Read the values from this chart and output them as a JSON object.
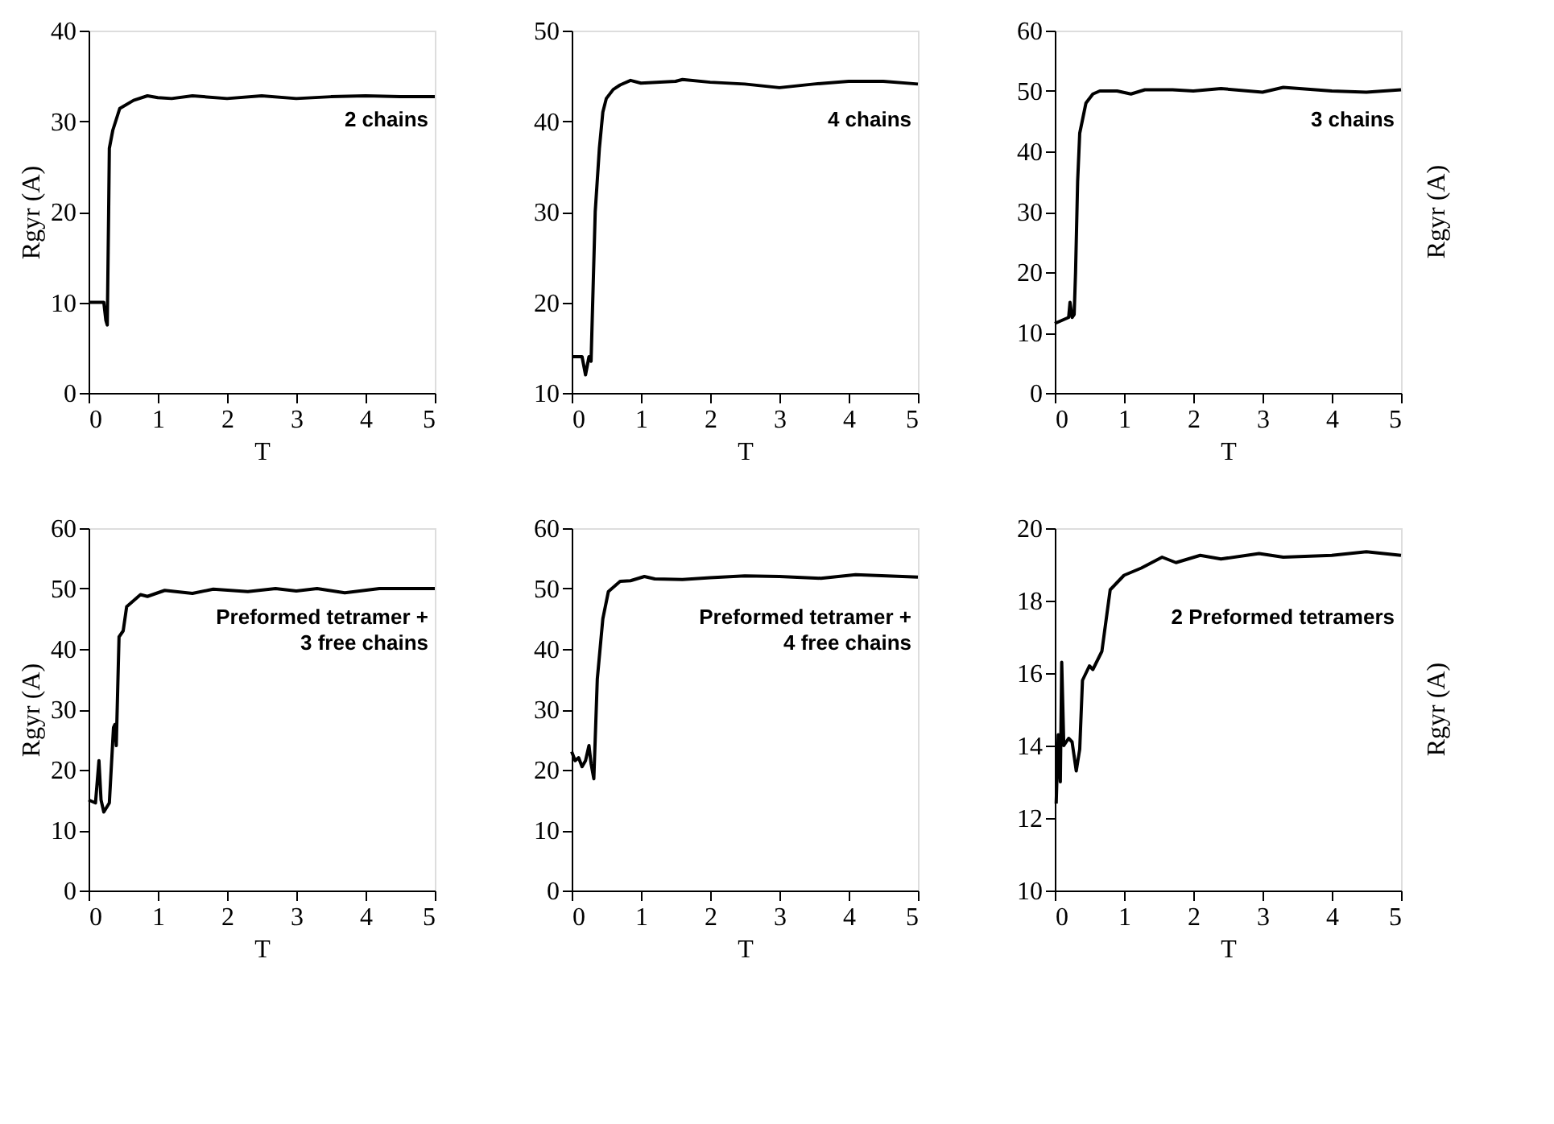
{
  "chart_data": [
    {
      "type": "line",
      "xlabel": "T",
      "ylabel": "Rgyr (A)",
      "annotations": [
        "2 chains"
      ],
      "xlim": [
        0,
        5
      ],
      "ylim": [
        0,
        40
      ],
      "xticks": [
        0,
        1,
        2,
        3,
        4,
        5
      ],
      "yticks": [
        0,
        10,
        20,
        30,
        40
      ],
      "grid": false,
      "marker": "none",
      "series": [
        {
          "color": "#000000",
          "x": [
            0,
            0.15,
            0.22,
            0.25,
            0.27,
            0.29,
            0.3,
            0.35,
            0.45,
            0.65,
            0.85,
            1,
            1.2,
            1.5,
            2,
            2.5,
            3,
            3.5,
            4,
            4.5,
            5
          ],
          "values": [
            10,
            10,
            10,
            8,
            7.5,
            20,
            27,
            29,
            31.4,
            32.3,
            32.8,
            32.6,
            32.5,
            32.8,
            32.5,
            32.8,
            32.5,
            32.7,
            32.8,
            32.7,
            32.7
          ]
        }
      ]
    },
    {
      "type": "line",
      "xlabel": "T",
      "annotations": [
        "4 chains"
      ],
      "xlim": [
        0,
        5
      ],
      "ylim": [
        10,
        50
      ],
      "xticks": [
        0,
        1,
        2,
        3,
        4,
        5
      ],
      "yticks": [
        10,
        20,
        30,
        40,
        50
      ],
      "grid": false,
      "marker": "none",
      "series": [
        {
          "color": "#000000",
          "x": [
            0,
            0.15,
            0.2,
            0.25,
            0.28,
            0.34,
            0.4,
            0.45,
            0.5,
            0.6,
            0.7,
            0.85,
            1,
            1.5,
            1.6,
            2,
            2.5,
            3,
            3.5,
            4,
            4.5,
            5
          ],
          "values": [
            14,
            14,
            12,
            14,
            13.5,
            30,
            37,
            41,
            42.5,
            43.5,
            44,
            44.5,
            44.2,
            44.4,
            44.6,
            44.3,
            44.1,
            43.7,
            44.1,
            44.4,
            44.4,
            44.1
          ]
        }
      ]
    },
    {
      "type": "line",
      "xlabel": "T",
      "ylabel": "Rgyr (A)",
      "annotations": [
        "3 chains"
      ],
      "xlim": [
        0,
        5
      ],
      "ylim": [
        0,
        60
      ],
      "xticks": [
        0,
        1,
        2,
        3,
        4,
        5
      ],
      "yticks": [
        0,
        10,
        20,
        30,
        40,
        50,
        60
      ],
      "grid": false,
      "marker": "none",
      "series": [
        {
          "color": "#000000",
          "x": [
            0,
            0.1,
            0.2,
            0.22,
            0.25,
            0.28,
            0.3,
            0.33,
            0.36,
            0.45,
            0.55,
            0.65,
            0.9,
            1.1,
            1.3,
            1.7,
            2,
            2.4,
            3,
            3.3,
            4,
            4.5,
            5
          ],
          "values": [
            11.5,
            12,
            12.5,
            15,
            12.5,
            13,
            20,
            35,
            43,
            48,
            49.5,
            50,
            50,
            49.5,
            50.2,
            50.2,
            50,
            50.4,
            49.8,
            50.6,
            50,
            49.8,
            50.2
          ]
        }
      ]
    },
    {
      "type": "line",
      "xlabel": "T",
      "ylabel": "Rgyr (A)",
      "annotations": [
        "Preformed tetramer +\n3 free chains"
      ],
      "xlim": [
        0,
        5
      ],
      "ylim": [
        0,
        60
      ],
      "xticks": [
        0,
        1,
        2,
        3,
        4,
        5
      ],
      "yticks": [
        0,
        10,
        20,
        30,
        40,
        50,
        60
      ],
      "grid": false,
      "marker": "none",
      "series": [
        {
          "color": "#000000",
          "x": [
            0,
            0.1,
            0.15,
            0.18,
            0.22,
            0.3,
            0.36,
            0.38,
            0.4,
            0.44,
            0.5,
            0.55,
            0.75,
            0.85,
            1.1,
            1.5,
            1.8,
            2.3,
            2.7,
            3,
            3.3,
            3.7,
            4.2,
            5
          ],
          "values": [
            15,
            14.5,
            21.5,
            15,
            13,
            14.5,
            27,
            27.5,
            24,
            42,
            43,
            47,
            49,
            48.7,
            49.7,
            49.2,
            49.9,
            49.5,
            50,
            49.6,
            50,
            49.3,
            50,
            50
          ]
        }
      ]
    },
    {
      "type": "line",
      "xlabel": "T",
      "annotations": [
        "Preformed tetramer +\n4 free chains"
      ],
      "xlim": [
        0,
        5
      ],
      "ylim": [
        0,
        60
      ],
      "xticks": [
        0,
        1,
        2,
        3,
        4,
        5
      ],
      "yticks": [
        0,
        10,
        20,
        30,
        40,
        50,
        60
      ],
      "grid": false,
      "marker": "none",
      "series": [
        {
          "color": "#000000",
          "x": [
            0,
            0.05,
            0.1,
            0.15,
            0.2,
            0.25,
            0.28,
            0.32,
            0.37,
            0.45,
            0.53,
            0.7,
            0.85,
            1.05,
            1.2,
            1.6,
            2,
            2.5,
            3,
            3.6,
            4.1,
            5
          ],
          "values": [
            23,
            21.5,
            22,
            20.5,
            21.5,
            24,
            21,
            18.5,
            35,
            45,
            49.5,
            51.2,
            51.3,
            52,
            51.6,
            51.5,
            51.8,
            52.1,
            52,
            51.7,
            52.3,
            51.9
          ]
        }
      ]
    },
    {
      "type": "line",
      "xlabel": "T",
      "ylabel": "Rgyr (A)",
      "annotations": [
        "2 Preformed tetramers"
      ],
      "xlim": [
        0,
        5
      ],
      "ylim": [
        10,
        20
      ],
      "xticks": [
        0,
        1,
        2,
        3,
        4,
        5
      ],
      "yticks": [
        10,
        12,
        14,
        16,
        18,
        20
      ],
      "grid": false,
      "marker": "none",
      "series": [
        {
          "color": "#000000",
          "x": [
            0.02,
            0.05,
            0.08,
            0.1,
            0.13,
            0.2,
            0.25,
            0.31,
            0.36,
            0.4,
            0.5,
            0.55,
            0.68,
            0.8,
            1.0,
            1.25,
            1.55,
            1.75,
            2.1,
            2.4,
            2.95,
            3.3,
            4,
            4.5,
            5
          ],
          "values": [
            12.4,
            14.3,
            13,
            16.3,
            14,
            14.2,
            14.1,
            13.3,
            13.9,
            15.8,
            16.2,
            16.1,
            16.6,
            18.3,
            18.7,
            18.9,
            19.2,
            19.05,
            19.25,
            19.15,
            19.3,
            19.2,
            19.25,
            19.35,
            19.25
          ]
        }
      ]
    }
  ]
}
